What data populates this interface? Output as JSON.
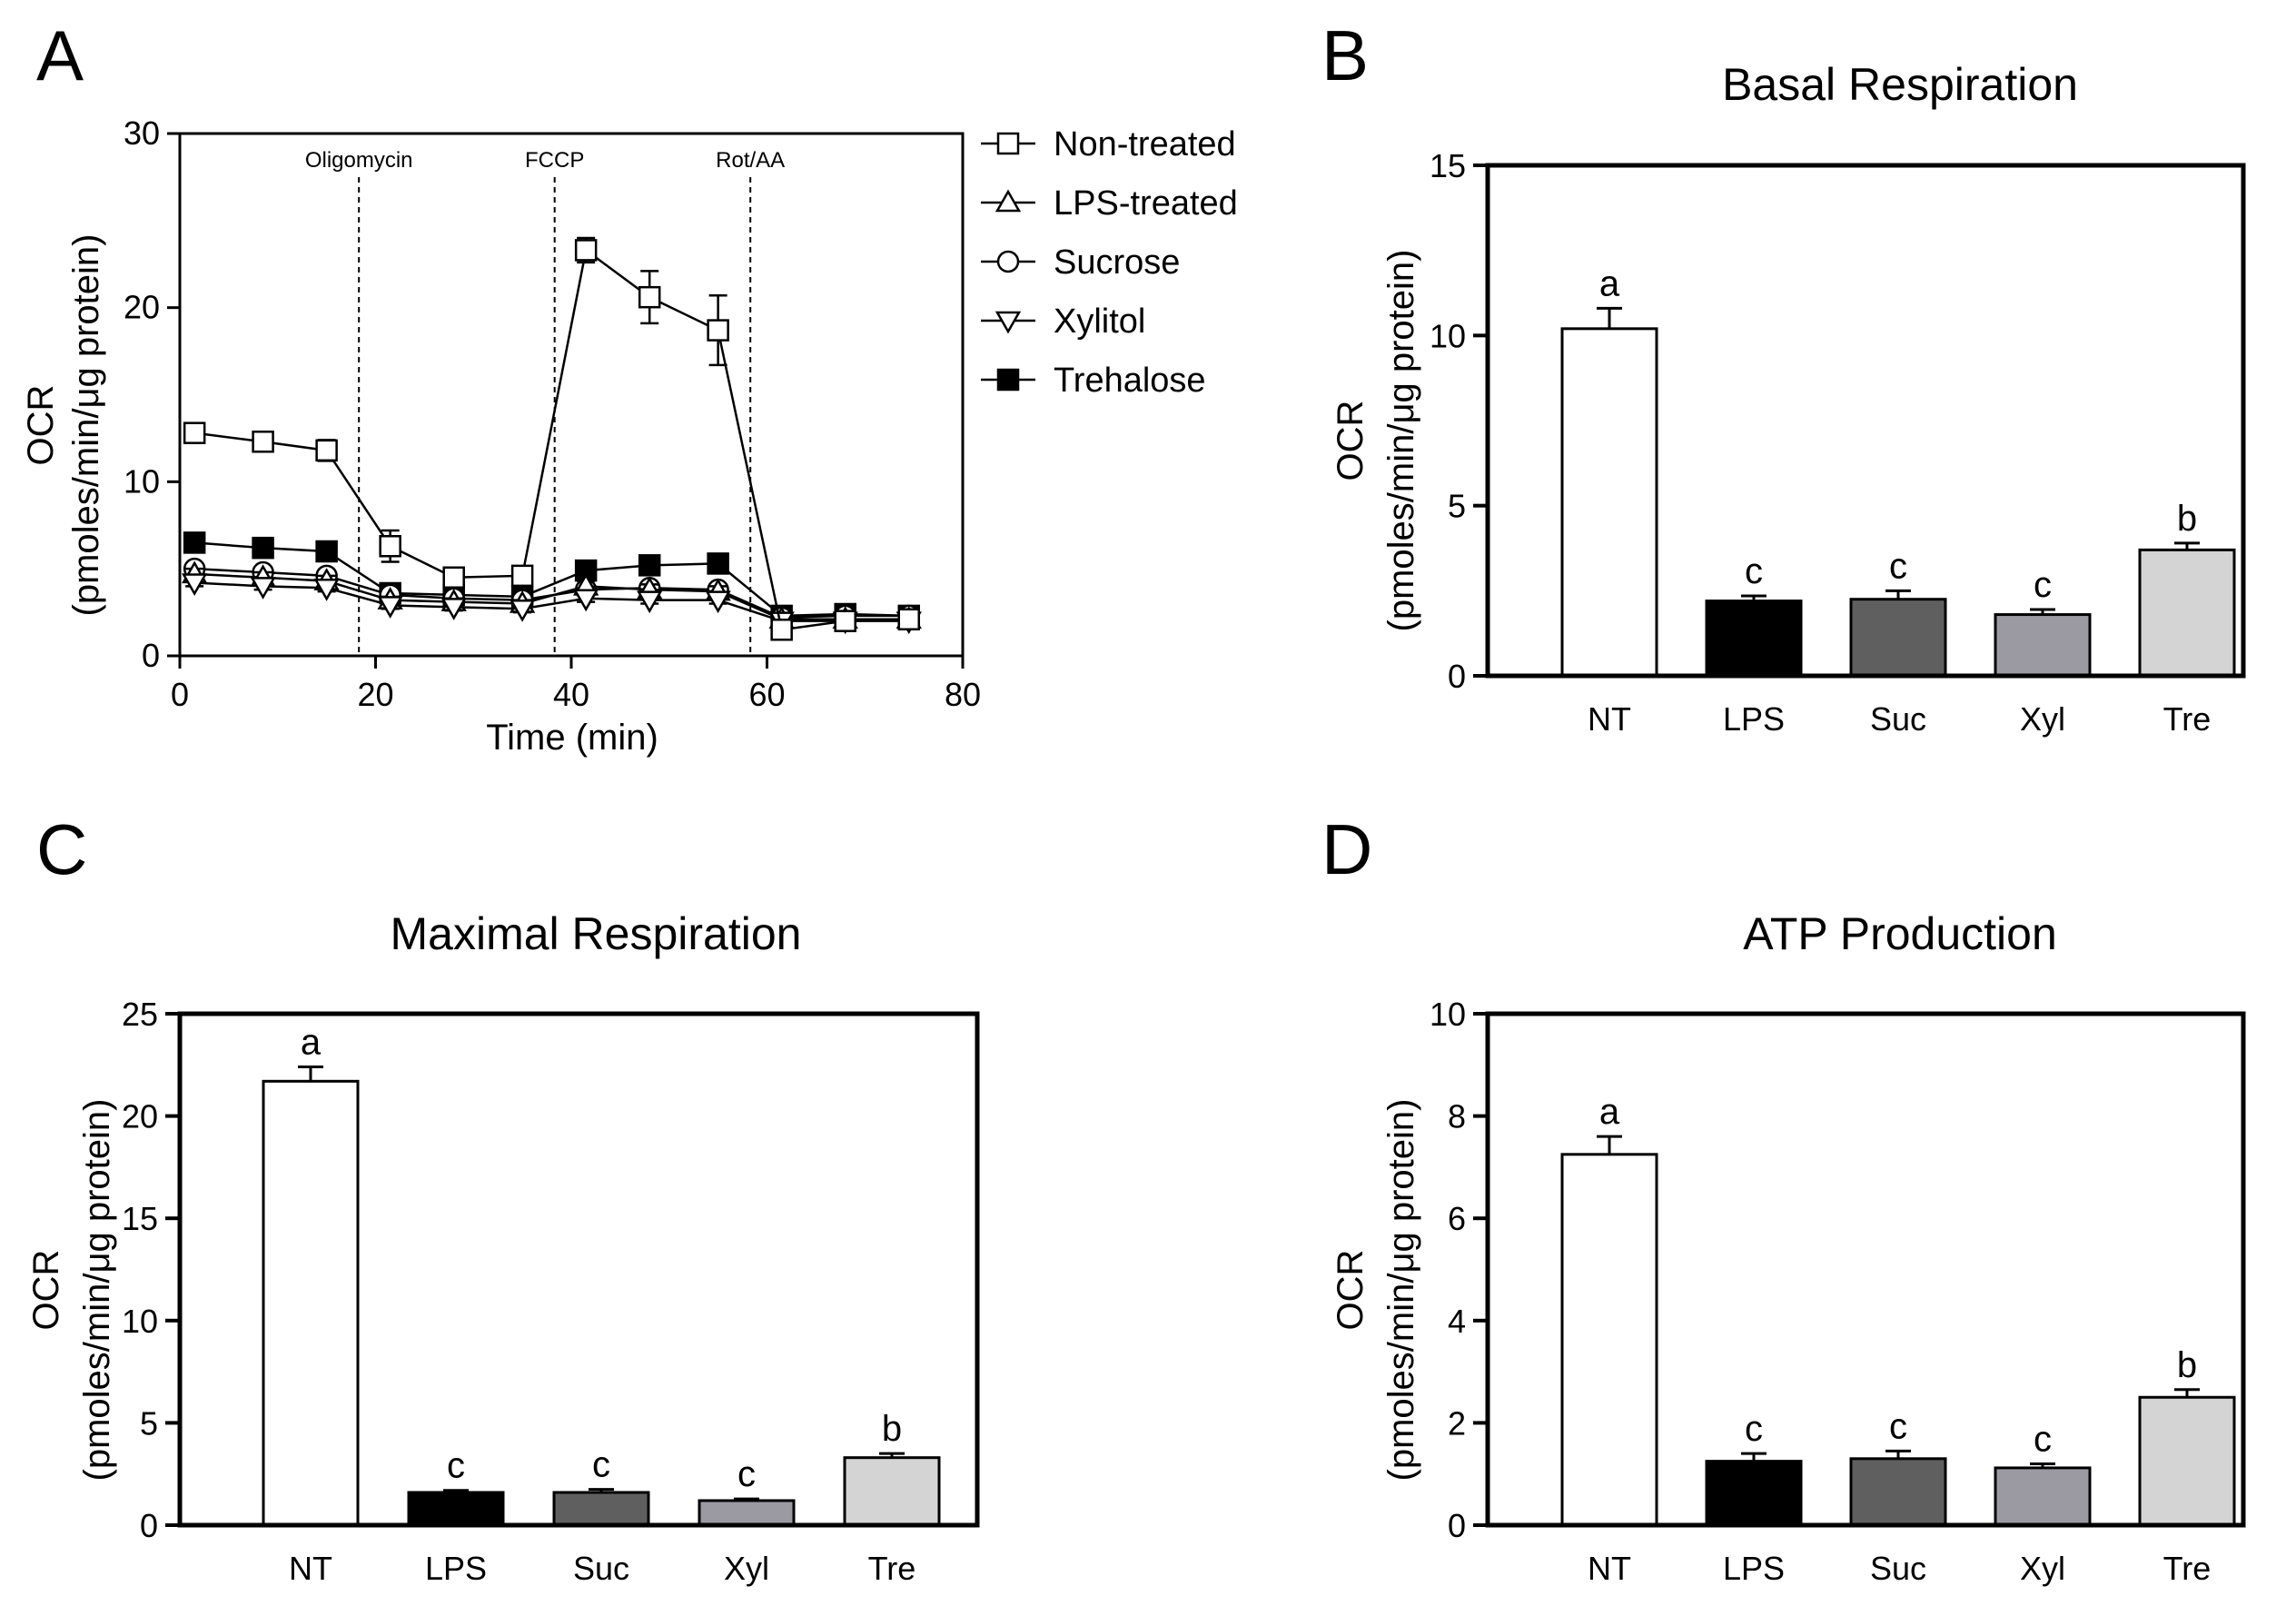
{
  "colors": {
    "NT": "#ffffff",
    "LPS": "#000000",
    "Suc": "#5f5f5f",
    "Xyl": "#9b9aa2",
    "Tre": "#d4d4d4",
    "axis": "#000000"
  },
  "chart_data": [
    {
      "panel": "A",
      "type": "line",
      "title": "",
      "xlabel": "Time (min)",
      "ylabel": "OCR",
      "ylabel_unit": "(pmoles/min/μg protein)",
      "xlim": [
        0,
        80
      ],
      "ylim": [
        0,
        30
      ],
      "xticks": [
        0,
        20,
        40,
        60,
        80
      ],
      "yticks": [
        0,
        10,
        20,
        30
      ],
      "x": [
        1.5,
        8.5,
        15,
        21.5,
        28,
        35,
        41.5,
        48,
        55,
        61.5,
        68,
        74.5
      ],
      "injections": [
        {
          "label": "Oligomycin",
          "x": 18.3
        },
        {
          "label": "FCCP",
          "x": 38.3
        },
        {
          "label": "Rot/AA",
          "x": 58.3
        }
      ],
      "legend_position": "top-right",
      "series": [
        {
          "name": "Non-treated",
          "marker": "square-open",
          "values": [
            12.8,
            12.3,
            11.8,
            6.3,
            4.5,
            4.6,
            23.3,
            20.6,
            18.7,
            1.5,
            2.0,
            2.1
          ],
          "errors": [
            0.3,
            0.4,
            0.6,
            0.9,
            0.3,
            0.5,
            0.7,
            1.5,
            2.0,
            0.2,
            0.3,
            0.3
          ]
        },
        {
          "name": "LPS-treated",
          "marker": "triangle-up-open",
          "values": [
            4.7,
            4.5,
            4.3,
            3.2,
            3.1,
            3.0,
            4.0,
            3.8,
            3.7,
            2.1,
            2.1,
            2.1
          ],
          "errors": [
            0.3,
            0.3,
            0.3,
            0.2,
            0.2,
            0.2,
            0.3,
            0.3,
            0.3,
            0.2,
            0.2,
            0.2
          ]
        },
        {
          "name": "Sucrose",
          "marker": "circle-open",
          "values": [
            5.0,
            4.8,
            4.6,
            3.5,
            3.3,
            3.2,
            3.8,
            3.9,
            3.8,
            2.2,
            2.3,
            2.3
          ],
          "errors": [
            0.3,
            0.3,
            0.3,
            0.2,
            0.2,
            0.2,
            0.3,
            0.3,
            0.3,
            0.2,
            0.2,
            0.2
          ]
        },
        {
          "name": "Xylitol",
          "marker": "triangle-down-open",
          "values": [
            4.2,
            4.0,
            3.9,
            2.9,
            2.8,
            2.7,
            3.3,
            3.2,
            3.2,
            2.0,
            2.0,
            2.0
          ],
          "errors": [
            0.2,
            0.2,
            0.2,
            0.2,
            0.2,
            0.2,
            0.2,
            0.2,
            0.2,
            0.2,
            0.2,
            0.2
          ]
        },
        {
          "name": "Trehalose",
          "marker": "square-filled",
          "values": [
            6.5,
            6.2,
            6.0,
            3.6,
            3.5,
            3.4,
            4.9,
            5.2,
            5.3,
            2.3,
            2.4,
            2.3
          ],
          "errors": [
            0.4,
            0.3,
            0.3,
            0.2,
            0.2,
            0.2,
            0.3,
            0.3,
            0.3,
            0.2,
            0.2,
            0.2
          ]
        }
      ]
    },
    {
      "panel": "B",
      "type": "bar",
      "title": "Basal Respiration",
      "xlabel": "",
      "ylabel": "OCR",
      "ylabel_unit": "(pmoles/min/μg protein)",
      "ylim": [
        0,
        15
      ],
      "yticks": [
        0,
        5,
        10,
        15
      ],
      "categories": [
        "NT",
        "LPS",
        "Suc",
        "Xyl",
        "Tre"
      ],
      "values": [
        10.2,
        2.2,
        2.25,
        1.8,
        3.7
      ],
      "errors": [
        0.6,
        0.15,
        0.25,
        0.15,
        0.2
      ],
      "letters": [
        "a",
        "c",
        "c",
        "c",
        "b"
      ]
    },
    {
      "panel": "C",
      "type": "bar",
      "title": "Maximal Respiration",
      "xlabel": "",
      "ylabel": "OCR",
      "ylabel_unit": "(pmoles/min/μg protein)",
      "ylim": [
        0,
        25
      ],
      "yticks": [
        0,
        5,
        10,
        15,
        20,
        25
      ],
      "categories": [
        "NT",
        "LPS",
        "Suc",
        "Xyl",
        "Tre"
      ],
      "values": [
        21.7,
        1.6,
        1.6,
        1.2,
        3.3
      ],
      "errors": [
        0.7,
        0.1,
        0.15,
        0.08,
        0.2
      ],
      "letters": [
        "a",
        "c",
        "c",
        "c",
        "b"
      ]
    },
    {
      "panel": "D",
      "type": "bar",
      "title": "ATP Production",
      "xlabel": "",
      "ylabel": "OCR",
      "ylabel_unit": "(pmoles/min/μg protein)",
      "ylim": [
        0,
        10
      ],
      "yticks": [
        0,
        2,
        4,
        6,
        8,
        10
      ],
      "categories": [
        "NT",
        "LPS",
        "Suc",
        "Xyl",
        "Tre"
      ],
      "values": [
        7.25,
        1.25,
        1.3,
        1.12,
        2.5
      ],
      "errors": [
        0.35,
        0.15,
        0.15,
        0.08,
        0.15
      ],
      "letters": [
        "a",
        "c",
        "c",
        "c",
        "b"
      ]
    }
  ]
}
